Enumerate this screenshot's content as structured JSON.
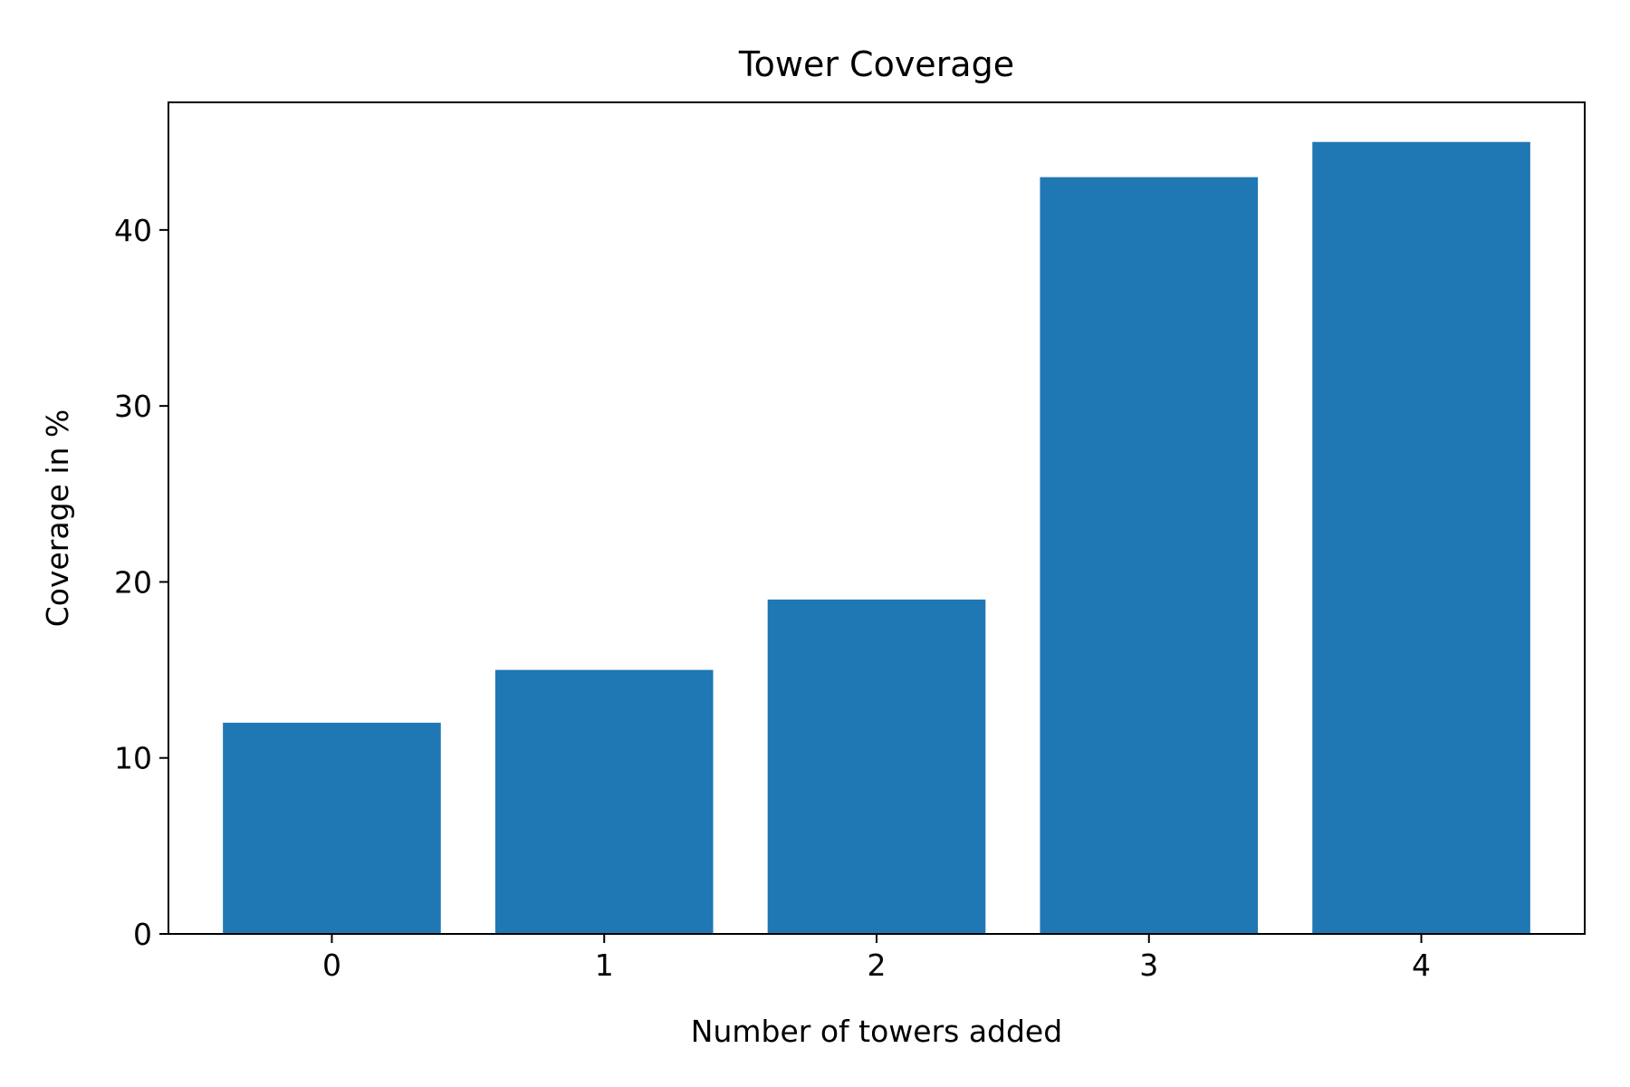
{
  "chart_data": {
    "type": "bar",
    "title": "Tower Coverage",
    "xlabel": "Number of towers added",
    "ylabel": "Coverage in %",
    "categories": [
      "0",
      "1",
      "2",
      "3",
      "4"
    ],
    "values": [
      12,
      15,
      19,
      43,
      45
    ],
    "ylim": [
      0,
      47.25
    ],
    "yticks": [
      "0",
      "10",
      "20",
      "30",
      "40"
    ],
    "bar_color": "#1f77b4",
    "grid": false,
    "legend": "none"
  }
}
